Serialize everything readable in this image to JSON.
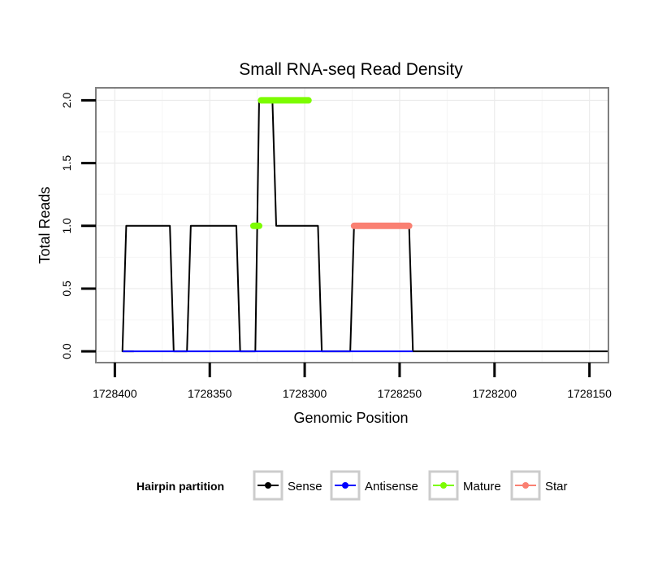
{
  "chart_data": {
    "type": "line",
    "title": "Small RNA-seq Read Density",
    "xlabel": "Genomic Position",
    "ylabel": "Total Reads",
    "x_reversed": true,
    "xlim": [
      1728410,
      1728140
    ],
    "ylim": [
      -0.09,
      2.1
    ],
    "x_ticks": [
      1728400,
      1728350,
      1728300,
      1728250,
      1728200,
      1728150
    ],
    "x_tick_labels": [
      "1728400",
      "1728350",
      "1728300",
      "1728250",
      "1728200",
      "1728150"
    ],
    "y_ticks": [
      0,
      0.5,
      1,
      1.5,
      2
    ],
    "y_tick_labels": [
      "0.0",
      "0.5",
      "1.0",
      "1.5",
      "2.0"
    ],
    "grid": true,
    "legend": {
      "title": "Hairpin partition",
      "position": "bottom",
      "entries": [
        {
          "name": "Sense",
          "color": "#000000"
        },
        {
          "name": "Antisense",
          "color": "#0000ff"
        },
        {
          "name": "Mature",
          "color": "#7cfc00"
        },
        {
          "name": "Star",
          "color": "#fa8072"
        }
      ]
    },
    "series": [
      {
        "name": "Sense",
        "color": "#000000",
        "x": [
          1728390,
          1728396,
          1728394,
          1728371,
          1728369,
          1728362,
          1728360,
          1728336,
          1728334,
          1728326,
          1728324,
          1728317,
          1728315,
          1728293,
          1728291,
          1728287,
          1728285,
          1728276,
          1728274,
          1728245,
          1728243,
          1728140
        ],
        "y": [
          0,
          0,
          1,
          1,
          0,
          0,
          1,
          1,
          0,
          0,
          2,
          2,
          1,
          1,
          0,
          0,
          0,
          0,
          1,
          1,
          0,
          0
        ]
      },
      {
        "name": "Antisense",
        "color": "#0000ff",
        "x": [
          1728396,
          1728243
        ],
        "y": [
          0,
          0
        ]
      },
      {
        "name": "Mature",
        "color": "#7cfc00",
        "segments": [
          {
            "x": [
              1728327,
              1728324
            ],
            "y": 1
          },
          {
            "x": [
              1728323,
              1728298
            ],
            "y": 2
          }
        ]
      },
      {
        "name": "Star",
        "color": "#fa8072",
        "segments": [
          {
            "x": [
              1728274,
              1728245
            ],
            "y": 1
          }
        ]
      }
    ]
  }
}
